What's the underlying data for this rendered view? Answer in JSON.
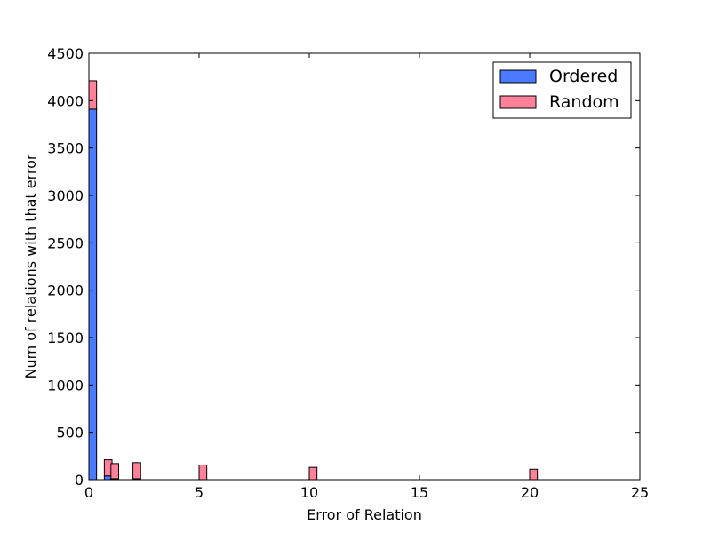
{
  "chart_data": {
    "type": "bar",
    "stacked": true,
    "title": "",
    "xlabel": "Error of Relation",
    "ylabel": "Num of relations with that error",
    "xlim": [
      0,
      25
    ],
    "ylim": [
      0,
      4500
    ],
    "xticks": [
      0,
      5,
      10,
      15,
      20,
      25
    ],
    "yticks": [
      0,
      500,
      1000,
      1500,
      2000,
      2500,
      3000,
      3500,
      4000,
      4500
    ],
    "bin_width": 0.35,
    "grid": false,
    "legend_position": "top-right",
    "bins": [
      0.0,
      0.7,
      1.0,
      2.0,
      5.0,
      10.0,
      20.0
    ],
    "series": [
      {
        "name": "Ordered",
        "color": "#4a7aff",
        "values": [
          3910,
          40,
          10,
          10,
          0,
          0,
          0
        ]
      },
      {
        "name": "Random",
        "color": "#ff8099",
        "values": [
          300,
          170,
          160,
          170,
          155,
          130,
          110
        ]
      }
    ],
    "edge_color": "#000000"
  }
}
